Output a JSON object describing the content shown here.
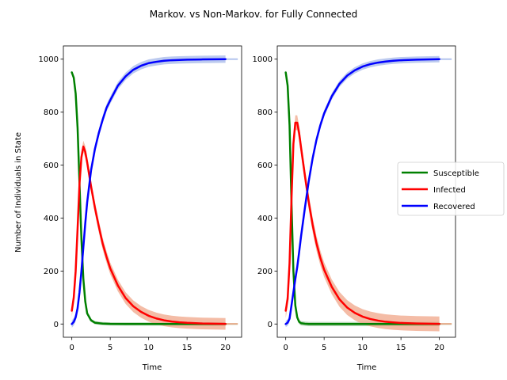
{
  "figure": {
    "suptitle": "Markov. vs Non-Markov. for Fully Connected"
  },
  "legend": {
    "placement": "right-center",
    "entries": [
      {
        "label": "Susceptible",
        "color": "#008000"
      },
      {
        "label": "Infected",
        "color": "#ff0000"
      },
      {
        "label": "Recovered",
        "color": "#0000ff"
      }
    ]
  },
  "chart_data": [
    {
      "type": "line",
      "title": "",
      "xlabel": "Time",
      "ylabel": "Number of Individuals in State",
      "xlim": [
        -1.1,
        22.1
      ],
      "ylim": [
        -50,
        1050
      ],
      "xticks": [
        0,
        5,
        10,
        15,
        20
      ],
      "yticks": [
        0,
        200,
        400,
        600,
        800,
        1000
      ],
      "grid": false,
      "band_colors": {
        "Susceptible": "#98c498",
        "Infected": "#f0a080",
        "Recovered": "#9fb4e8"
      },
      "series": [
        {
          "name": "Susceptible",
          "color": "#008000",
          "x": [
            0,
            0.25,
            0.5,
            0.75,
            1,
            1.25,
            1.5,
            1.75,
            2,
            2.5,
            3,
            4,
            5,
            7,
            10,
            15,
            20
          ],
          "y": [
            950,
            930,
            870,
            740,
            530,
            320,
            170,
            85,
            40,
            14,
            5,
            1.5,
            0.5,
            0,
            0,
            0,
            0
          ],
          "band": 6
        },
        {
          "name": "Infected",
          "color": "#ff0000",
          "x": [
            0,
            0.25,
            0.5,
            0.75,
            1,
            1.25,
            1.5,
            1.75,
            2,
            2.5,
            3,
            3.5,
            4,
            4.5,
            5,
            6,
            7,
            8,
            9,
            10,
            11,
            12,
            13,
            14,
            15,
            17,
            20
          ],
          "y": [
            50,
            100,
            200,
            360,
            530,
            630,
            670,
            650,
            610,
            520,
            440,
            370,
            305,
            255,
            210,
            145,
            98,
            67,
            46,
            31,
            21,
            14,
            9.5,
            6.5,
            4.5,
            2,
            0.5
          ],
          "band": 22
        },
        {
          "name": "Recovered",
          "color": "#0000ff",
          "x": [
            0,
            0.25,
            0.5,
            0.75,
            1,
            1.25,
            1.5,
            1.75,
            2,
            2.5,
            3,
            3.5,
            4,
            4.5,
            5,
            6,
            7,
            8,
            9,
            10,
            11,
            12,
            13,
            14,
            15,
            17,
            20
          ],
          "y": [
            0,
            8,
            25,
            60,
            120,
            200,
            290,
            380,
            460,
            580,
            660,
            720,
            770,
            815,
            845,
            900,
            935,
            960,
            975,
            985,
            990,
            994,
            996,
            997,
            998,
            999,
            1000
          ],
          "band": 14
        }
      ]
    },
    {
      "type": "line",
      "title": "",
      "xlabel": "Time",
      "ylabel": "",
      "xlim": [
        -1.1,
        22.1
      ],
      "ylim": [
        -50,
        1050
      ],
      "xticks": [
        0,
        5,
        10,
        15,
        20
      ],
      "yticks": [
        0,
        200,
        400,
        600,
        800,
        1000
      ],
      "grid": false,
      "band_colors": {
        "Susceptible": "#98c498",
        "Infected": "#f0a080",
        "Recovered": "#9fb4e8"
      },
      "series": [
        {
          "name": "Susceptible",
          "color": "#008000",
          "x": [
            0,
            0.25,
            0.5,
            0.75,
            1,
            1.25,
            1.5,
            1.75,
            2,
            2.5,
            3,
            4,
            5,
            7,
            10,
            15,
            20
          ],
          "y": [
            950,
            900,
            750,
            460,
            200,
            70,
            25,
            8,
            3,
            1,
            0,
            0,
            0,
            0,
            0,
            0,
            0
          ],
          "band": 8
        },
        {
          "name": "Infected",
          "color": "#ff0000",
          "x": [
            0,
            0.25,
            0.5,
            0.75,
            1,
            1.25,
            1.5,
            1.75,
            2,
            2.5,
            3,
            3.5,
            4,
            4.5,
            5,
            6,
            7,
            8,
            9,
            10,
            11,
            12,
            13,
            14,
            15,
            17,
            20
          ],
          "y": [
            50,
            95,
            230,
            470,
            680,
            760,
            760,
            720,
            665,
            560,
            460,
            375,
            305,
            250,
            205,
            140,
            93,
            62,
            42,
            28,
            19,
            13,
            8.5,
            6,
            4,
            2,
            0.5
          ],
          "band": 28
        },
        {
          "name": "Recovered",
          "color": "#0000ff",
          "x": [
            0,
            0.25,
            0.5,
            0.75,
            1,
            1.25,
            1.5,
            1.75,
            2,
            2.5,
            3,
            3.5,
            4,
            4.5,
            5,
            6,
            7,
            8,
            9,
            10,
            11,
            12,
            13,
            14,
            15,
            17,
            20
          ],
          "y": [
            0,
            5,
            20,
            70,
            120,
            170,
            215,
            272,
            332,
            439,
            540,
            625,
            695,
            750,
            795,
            860,
            907,
            938,
            958,
            972,
            981,
            987,
            991,
            994,
            996,
            998,
            1000
          ],
          "band": 12
        }
      ]
    }
  ]
}
